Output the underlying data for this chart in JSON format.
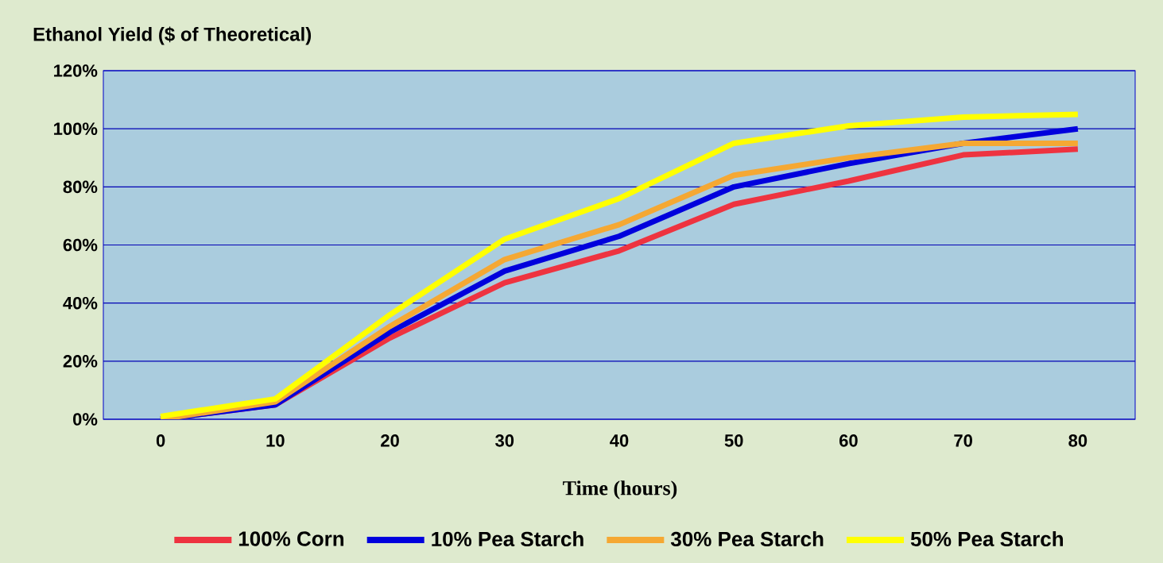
{
  "chart_data": {
    "type": "line",
    "ylabel": "Ethanol Yield ($ of Theoretical)",
    "xlabel": "Time (hours)",
    "categories": [
      "0",
      "10",
      "20",
      "30",
      "40",
      "50",
      "60",
      "70",
      "80"
    ],
    "series": [
      {
        "name": "100% Corn",
        "color": "#ee3340",
        "values": [
          0,
          5,
          28,
          47,
          58,
          74,
          82,
          91,
          93
        ]
      },
      {
        "name": "10% Pea Starch",
        "color": "#0000dd",
        "values": [
          0,
          5,
          30,
          51,
          63,
          80,
          88,
          95,
          100
        ]
      },
      {
        "name": "30% Pea Starch",
        "color": "#f5a833",
        "values": [
          0,
          6,
          32,
          55,
          67,
          84,
          90,
          95,
          95
        ]
      },
      {
        "name": "50% Pea Starch",
        "color": "#ffff00",
        "values": [
          1,
          7,
          36,
          62,
          76,
          95,
          101,
          104,
          105
        ]
      }
    ],
    "ylim": [
      0,
      120
    ],
    "yticks": [
      {
        "value": 0,
        "label": "0%"
      },
      {
        "value": 20,
        "label": "20%"
      },
      {
        "value": 40,
        "label": "40%"
      },
      {
        "value": 60,
        "label": "60%"
      },
      {
        "value": 80,
        "label": "80%"
      },
      {
        "value": 100,
        "label": "100%"
      },
      {
        "value": 120,
        "label": "120%"
      }
    ],
    "grid": "y",
    "legend": "bottom",
    "marker": "none",
    "line_style": "solid"
  }
}
